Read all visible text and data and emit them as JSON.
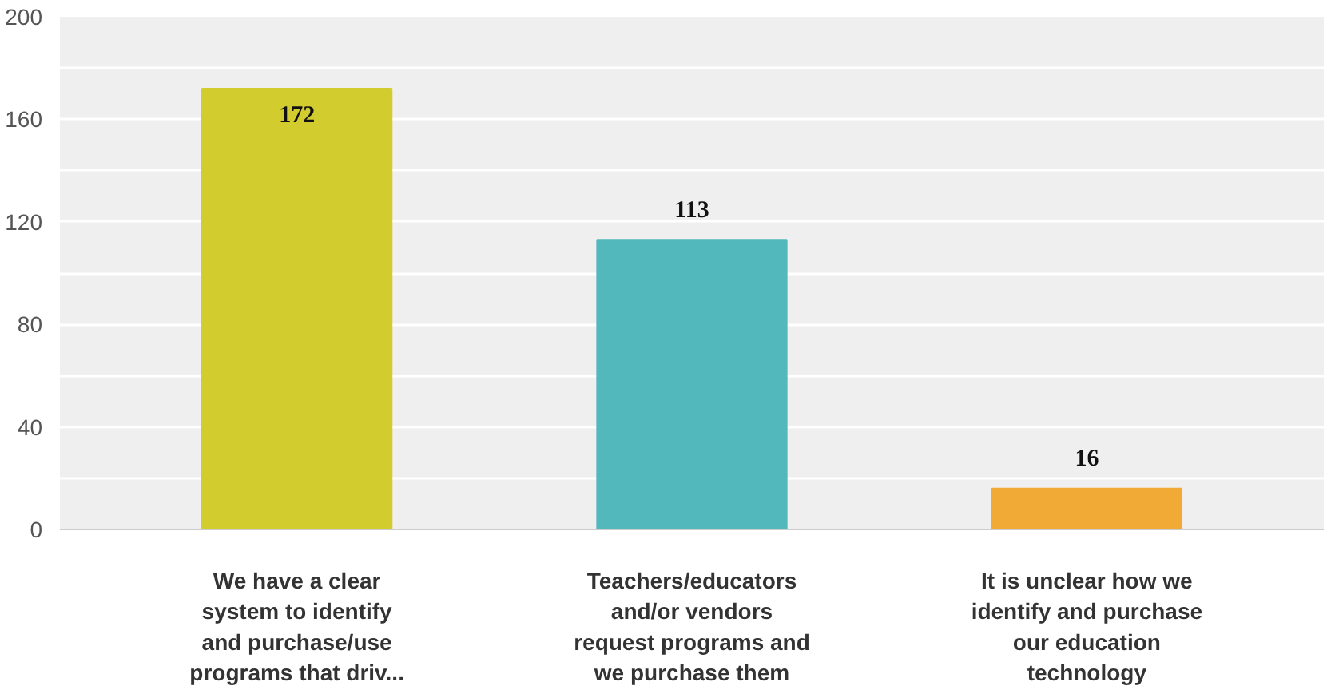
{
  "chart_data": {
    "type": "bar",
    "categories": [
      "We have a clear system to identify and purchase/use programs that driv...",
      "Teachers/educators and/or vendors request programs and we purchase them",
      "It is unclear how we identify and purchase our education technology"
    ],
    "values": [
      172,
      113,
      16
    ],
    "colors": [
      "#d2cc2e",
      "#53b8bc",
      "#f0aa35"
    ],
    "ylim": [
      0,
      200
    ],
    "yticks": [
      0,
      {
        "value": 20,
        "label": null
      },
      40,
      {
        "value": 60,
        "label": null
      },
      80,
      {
        "value": 100,
        "label": null
      },
      120,
      {
        "value": 140,
        "label": null
      },
      160,
      {
        "value": 180,
        "label": null
      },
      200
    ],
    "grid": "y",
    "data_labels": true
  }
}
